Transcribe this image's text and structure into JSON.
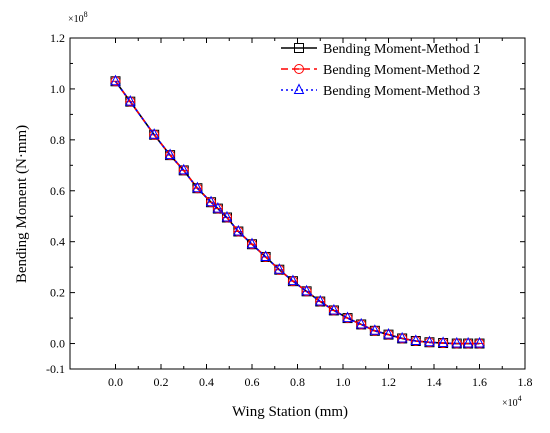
{
  "chart_data": {
    "type": "line",
    "title": "",
    "xlabel": "Wing Station (mm)",
    "ylabel": "Bending Moment (N·mm)",
    "x_multiplier": {
      "base": "×10",
      "exp": "4"
    },
    "y_multiplier": {
      "base": "×10",
      "exp": "8"
    },
    "xlim": [
      -0.2,
      1.8
    ],
    "ylim": [
      -0.1,
      1.2
    ],
    "x_ticks": [
      0.0,
      0.2,
      0.4,
      0.6,
      0.8,
      1.0,
      1.2,
      1.4,
      1.6,
      1.8
    ],
    "x_tick_labels": [
      "0.0",
      "0.2",
      "0.4",
      "0.6",
      "0.8",
      "1.0",
      "1.2",
      "1.4",
      "1.6",
      "1.8"
    ],
    "y_ticks": [
      -0.1,
      0.0,
      0.2,
      0.4,
      0.6,
      0.8,
      1.0,
      1.2
    ],
    "y_tick_labels": [
      "-0.1",
      "0.0",
      "0.2",
      "0.4",
      "0.6",
      "0.8",
      "1.0",
      "1.2"
    ],
    "legend_position": "top-right",
    "x": [
      0.0,
      0.065,
      0.17,
      0.24,
      0.3,
      0.36,
      0.42,
      0.45,
      0.49,
      0.54,
      0.6,
      0.66,
      0.72,
      0.78,
      0.84,
      0.9,
      0.96,
      1.02,
      1.08,
      1.14,
      1.2,
      1.26,
      1.32,
      1.38,
      1.44,
      1.5,
      1.55,
      1.6
    ],
    "series": [
      {
        "name": "Bending Moment-Method 1",
        "color": "#000000",
        "marker": "square",
        "dash": "solid",
        "values": [
          1.03,
          0.95,
          0.82,
          0.74,
          0.68,
          0.61,
          0.555,
          0.53,
          0.495,
          0.44,
          0.39,
          0.34,
          0.29,
          0.245,
          0.205,
          0.165,
          0.13,
          0.1,
          0.075,
          0.05,
          0.035,
          0.02,
          0.01,
          0.005,
          0.002,
          0.0,
          0.0,
          0.0
        ]
      },
      {
        "name": "Bending Moment-Method 2",
        "color": "#ff0000",
        "marker": "circle",
        "dash": "dashed",
        "values": [
          1.03,
          0.95,
          0.82,
          0.74,
          0.68,
          0.61,
          0.555,
          0.53,
          0.495,
          0.44,
          0.39,
          0.34,
          0.29,
          0.245,
          0.205,
          0.165,
          0.13,
          0.1,
          0.075,
          0.05,
          0.035,
          0.02,
          0.01,
          0.005,
          0.002,
          0.0,
          0.0,
          0.0
        ]
      },
      {
        "name": "Bending Moment-Method 3",
        "color": "#0000ff",
        "marker": "triangle",
        "dash": "dotted",
        "values": [
          1.03,
          0.95,
          0.82,
          0.74,
          0.68,
          0.61,
          0.555,
          0.53,
          0.495,
          0.44,
          0.39,
          0.34,
          0.29,
          0.245,
          0.205,
          0.165,
          0.13,
          0.1,
          0.075,
          0.05,
          0.035,
          0.02,
          0.01,
          0.005,
          0.002,
          0.0,
          0.0,
          0.0
        ]
      }
    ]
  }
}
